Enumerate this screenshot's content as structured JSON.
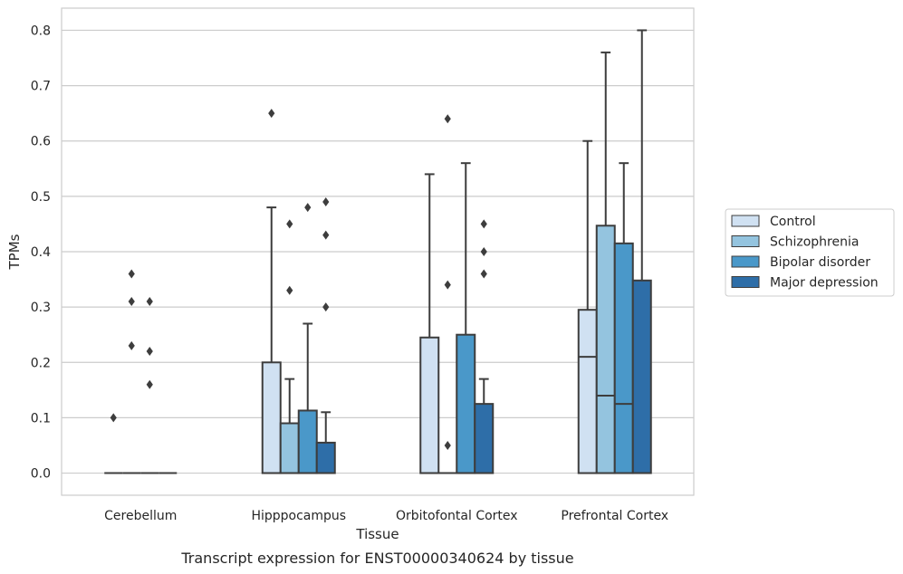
{
  "chart_data": {
    "type": "box",
    "title": "",
    "caption": "Transcript expression for ENST00000340624 by tissue",
    "xlabel": "Tissue",
    "ylabel": "TPMs",
    "ylim": [
      -0.04,
      0.84
    ],
    "yticks": [
      0.0,
      0.1,
      0.2,
      0.3,
      0.4,
      0.5,
      0.6,
      0.7,
      0.8
    ],
    "ytick_labels": [
      "0.0",
      "0.1",
      "0.2",
      "0.3",
      "0.4",
      "0.5",
      "0.6",
      "0.7",
      "0.8"
    ],
    "grid": true,
    "legend_position": "right",
    "categories": [
      "Cerebellum",
      "Hipppocampus",
      "Orbitofontal Cortex",
      "Prefrontal Cortex"
    ],
    "series": [
      {
        "name": "Control",
        "color": "#d0e1f2",
        "boxes": [
          {
            "q1": 0.0,
            "median": 0.0,
            "q3": 0.0,
            "whisker_low": 0.0,
            "whisker_high": 0.0,
            "outliers": [
              0.1
            ]
          },
          {
            "q1": 0.0,
            "median": 0.0,
            "q3": 0.2,
            "whisker_low": 0.0,
            "whisker_high": 0.48,
            "outliers": [
              0.65
            ]
          },
          {
            "q1": 0.0,
            "median": 0.0,
            "q3": 0.245,
            "whisker_low": 0.0,
            "whisker_high": 0.54,
            "outliers": []
          },
          {
            "q1": 0.0,
            "median": 0.21,
            "q3": 0.295,
            "whisker_low": 0.0,
            "whisker_high": 0.6,
            "outliers": []
          }
        ]
      },
      {
        "name": "Schizophrenia",
        "color": "#94c4df",
        "boxes": [
          {
            "q1": 0.0,
            "median": 0.0,
            "q3": 0.0,
            "whisker_low": 0.0,
            "whisker_high": 0.0,
            "outliers": [
              0.36,
              0.31,
              0.23
            ]
          },
          {
            "q1": 0.0,
            "median": 0.0,
            "q3": 0.09,
            "whisker_low": 0.0,
            "whisker_high": 0.17,
            "outliers": [
              0.45,
              0.33
            ]
          },
          {
            "q1": 0.0,
            "median": 0.0,
            "q3": 0.0,
            "whisker_low": 0.0,
            "whisker_high": 0.0,
            "outliers": [
              0.64,
              0.34,
              0.05
            ]
          },
          {
            "q1": 0.0,
            "median": 0.14,
            "q3": 0.447,
            "whisker_low": 0.0,
            "whisker_high": 0.76,
            "outliers": []
          }
        ]
      },
      {
        "name": "Bipolar disorder",
        "color": "#4a98c9",
        "boxes": [
          {
            "q1": 0.0,
            "median": 0.0,
            "q3": 0.0,
            "whisker_low": 0.0,
            "whisker_high": 0.0,
            "outliers": [
              0.31,
              0.22,
              0.16
            ]
          },
          {
            "q1": 0.0,
            "median": 0.0,
            "q3": 0.113,
            "whisker_low": 0.0,
            "whisker_high": 0.27,
            "outliers": [
              0.48
            ]
          },
          {
            "q1": 0.0,
            "median": 0.0,
            "q3": 0.25,
            "whisker_low": 0.0,
            "whisker_high": 0.56,
            "outliers": []
          },
          {
            "q1": 0.0,
            "median": 0.125,
            "q3": 0.415,
            "whisker_low": 0.0,
            "whisker_high": 0.56,
            "outliers": []
          }
        ]
      },
      {
        "name": "Major depression",
        "color": "#2e6ea8",
        "boxes": [
          {
            "q1": 0.0,
            "median": 0.0,
            "q3": 0.0,
            "whisker_low": 0.0,
            "whisker_high": 0.0,
            "outliers": []
          },
          {
            "q1": 0.0,
            "median": 0.0,
            "q3": 0.055,
            "whisker_low": 0.0,
            "whisker_high": 0.11,
            "outliers": [
              0.49,
              0.43,
              0.3
            ]
          },
          {
            "q1": 0.0,
            "median": 0.0,
            "q3": 0.125,
            "whisker_low": 0.0,
            "whisker_high": 0.17,
            "outliers": [
              0.45,
              0.4,
              0.36
            ]
          },
          {
            "q1": 0.0,
            "median": 0.0,
            "q3": 0.348,
            "whisker_low": 0.0,
            "whisker_high": 0.8,
            "outliers": []
          }
        ]
      }
    ]
  }
}
